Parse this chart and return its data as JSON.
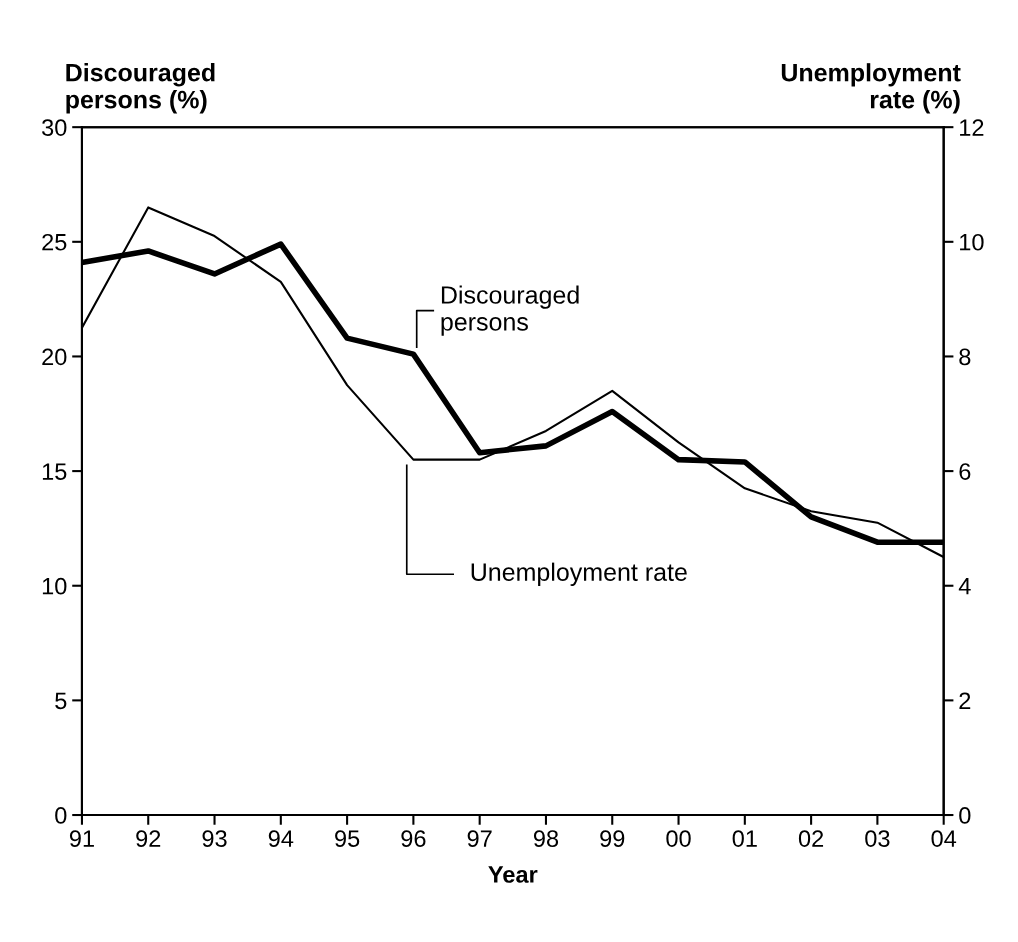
{
  "chart_data": {
    "type": "line",
    "xlabel": "Year",
    "ylabel": "Discouraged\npersons (%)",
    "y2label": "Unemployment\nrate (%)",
    "categories": [
      "91",
      "92",
      "93",
      "94",
      "95",
      "96",
      "97",
      "98",
      "99",
      "00",
      "01",
      "02",
      "03",
      "04"
    ],
    "series": [
      {
        "name": "Discouraged\npersons",
        "color": "#000000",
        "values": [
          24.1,
          24.6,
          23.6,
          24.9,
          20.8,
          20.1,
          15.8,
          16.1,
          17.6,
          15.5,
          15.4,
          13.0,
          11.9,
          11.9
        ]
      },
      {
        "name": "Unemployment rate",
        "color": "#000000",
        "axis": "y2",
        "values": [
          8.5,
          10.6,
          10.1,
          9.3,
          7.5,
          6.2,
          6.2,
          6.7,
          7.4,
          6.5,
          5.7,
          5.3,
          5.1,
          4.5
        ]
      }
    ],
    "ylim": [
      0,
      30
    ],
    "yticks": [
      0,
      5,
      10,
      15,
      20,
      25,
      30
    ],
    "y2lim": [
      0,
      12
    ],
    "y2ticks": [
      0,
      2,
      4,
      6,
      8,
      10,
      12
    ],
    "grid": false,
    "legend": false,
    "marker": "none",
    "line_style": "solid"
  }
}
